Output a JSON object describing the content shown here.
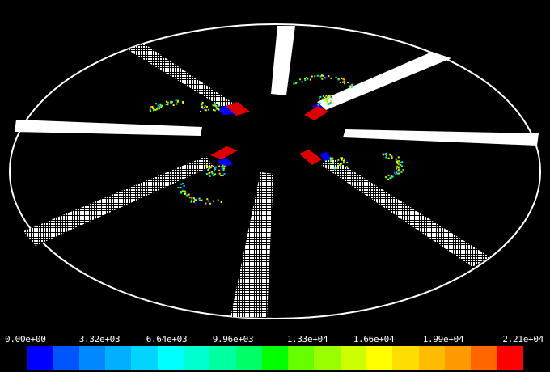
{
  "scene": {
    "name": "particle-visualization",
    "background": "#000000",
    "boundary_color": "#ffffff",
    "blade_color": "#ffffff",
    "inlet_color": "#dd0000",
    "inlet_edge_color": "#0000ff",
    "blade_count": 8,
    "particle_cluster_count": 4
  },
  "legend": {
    "tick_labels": [
      "0.00e+00",
      "3.32e+03",
      "6.64e+03",
      "9.96e+03",
      "1.33e+04",
      "1.66e+04",
      "1.99e+04",
      "2.21e+04"
    ],
    "min": 0,
    "max": 22100,
    "colors": [
      "#0000ff",
      "#0055ff",
      "#0088ff",
      "#00b0ff",
      "#00d4ff",
      "#00ffff",
      "#00ffd0",
      "#00ffa0",
      "#00ff66",
      "#00ff00",
      "#66ff00",
      "#99ff00",
      "#ccff00",
      "#ffff00",
      "#ffdd00",
      "#ffbb00",
      "#ff9900",
      "#ff6600",
      "#ff0000"
    ]
  }
}
